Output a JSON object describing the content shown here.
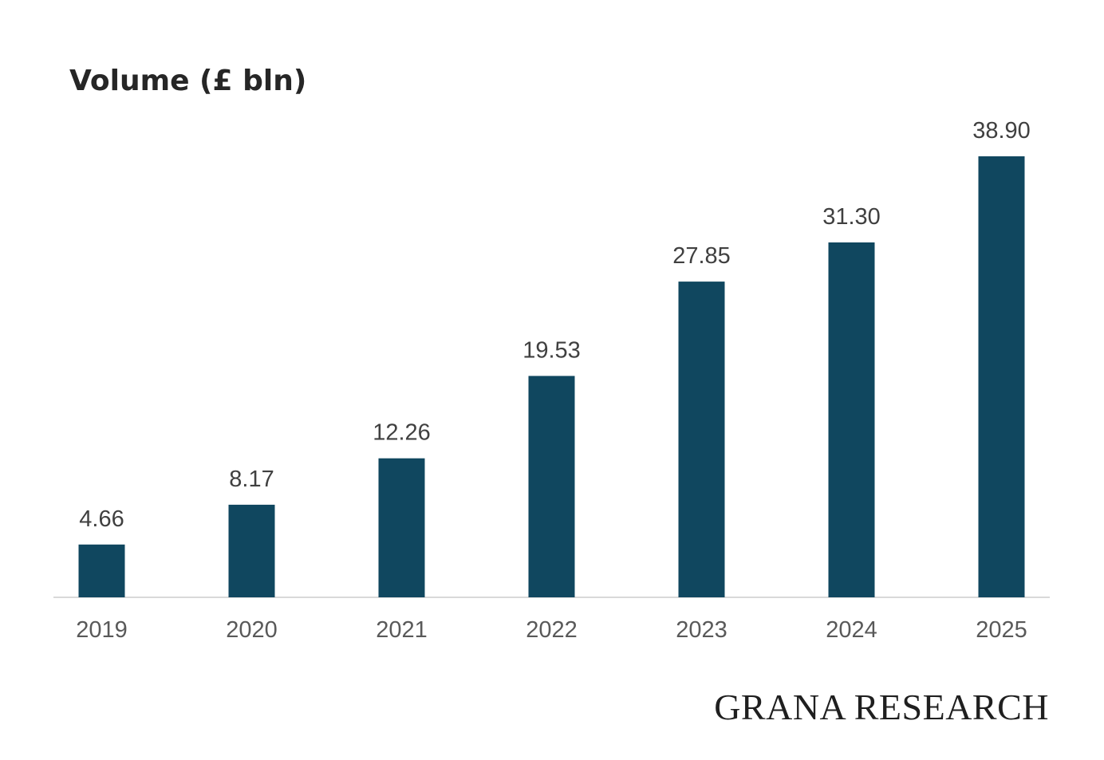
{
  "chart_data": {
    "type": "bar",
    "title": "Volume (£ bln)",
    "categories": [
      "2019",
      "2020",
      "2021",
      "2022",
      "2023",
      "2024",
      "2025"
    ],
    "values": [
      4.66,
      8.17,
      12.26,
      19.53,
      27.85,
      31.3,
      38.9
    ],
    "value_labels": [
      "4.66",
      "8.17",
      "12.26",
      "19.53",
      "27.85",
      "31.30",
      "38.90"
    ],
    "xlabel": "",
    "ylabel": "",
    "ylim": [
      0,
      38.9
    ],
    "grid": false,
    "legend": "none",
    "colors": {
      "bar": "#10475F",
      "axis": "#d9d9d9"
    }
  },
  "branding": {
    "watermark": "GRANA RESEARCH"
  }
}
